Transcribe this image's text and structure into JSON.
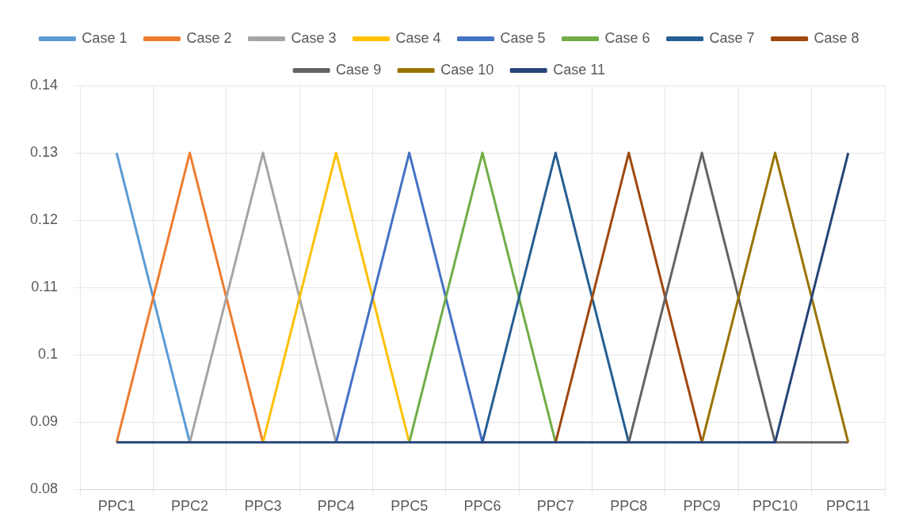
{
  "chart_data": {
    "type": "line",
    "categories": [
      "PPC1",
      "PPC2",
      "PPC3",
      "PPC4",
      "PPC5",
      "PPC6",
      "PPC7",
      "PPC8",
      "PPC9",
      "PPC10",
      "PPC11"
    ],
    "series": [
      {
        "name": "Case 1",
        "color": "#5b9bd5",
        "values": [
          0.13,
          0.087,
          null,
          null,
          null,
          null,
          null,
          null,
          null,
          null,
          null
        ]
      },
      {
        "name": "Case 2",
        "color": "#ed7d31",
        "values": [
          0.087,
          0.13,
          0.087,
          null,
          null,
          null,
          null,
          null,
          null,
          null,
          null
        ]
      },
      {
        "name": "Case 3",
        "color": "#a5a5a5",
        "values": [
          null,
          0.087,
          0.13,
          0.087,
          null,
          null,
          null,
          null,
          null,
          null,
          null
        ]
      },
      {
        "name": "Case 4",
        "color": "#ffc000",
        "values": [
          null,
          null,
          0.087,
          0.13,
          0.087,
          null,
          null,
          null,
          null,
          null,
          null
        ]
      },
      {
        "name": "Case 5",
        "color": "#4472c4",
        "values": [
          null,
          null,
          null,
          0.087,
          0.13,
          0.087,
          null,
          null,
          null,
          null,
          null
        ]
      },
      {
        "name": "Case 6",
        "color": "#70ad47",
        "values": [
          null,
          null,
          null,
          null,
          0.087,
          0.13,
          0.087,
          null,
          null,
          null,
          null
        ]
      },
      {
        "name": "Case 7",
        "color": "#255e91",
        "values": [
          null,
          null,
          null,
          null,
          null,
          0.087,
          0.13,
          0.087,
          null,
          null,
          null
        ]
      },
      {
        "name": "Case 8",
        "color": "#9e480e",
        "values": [
          null,
          null,
          null,
          null,
          null,
          null,
          0.087,
          0.13,
          0.087,
          null,
          null
        ]
      },
      {
        "name": "Case 9",
        "color": "#636363",
        "values": [
          null,
          null,
          null,
          null,
          null,
          null,
          null,
          0.087,
          0.13,
          0.087,
          0.087
        ]
      },
      {
        "name": "Case 10",
        "color": "#997300",
        "values": [
          null,
          null,
          null,
          null,
          null,
          null,
          null,
          null,
          0.087,
          0.13,
          0.087
        ]
      },
      {
        "name": "Case 11",
        "color": "#264478",
        "values": [
          0.087,
          0.087,
          0.087,
          0.087,
          0.087,
          0.087,
          0.087,
          0.087,
          0.087,
          0.087,
          0.13
        ]
      }
    ],
    "ylim": [
      0.08,
      0.14
    ],
    "yticks": [
      0.08,
      0.09,
      0.1,
      0.11,
      0.12,
      0.13,
      0.14
    ],
    "grid": true,
    "legend": "top",
    "marker": "none",
    "line_style": "solid"
  }
}
